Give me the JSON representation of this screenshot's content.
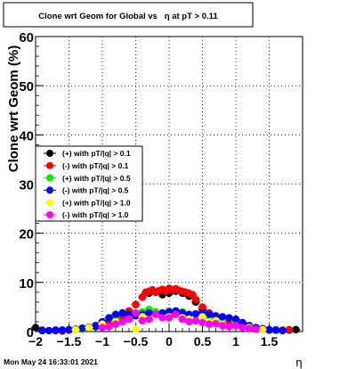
{
  "chart_data": {
    "type": "scatter",
    "title": "Clone wrt Geom for Global vs   η at pT > 0.11",
    "xlabel": "η",
    "ylabel": "Clone wrt Geom (%)",
    "xlim": [
      -2,
      2
    ],
    "ylim": [
      0,
      60
    ],
    "x_ticks": [
      -2,
      -1.5,
      -1,
      -0.5,
      0,
      0.5,
      1,
      1.5
    ],
    "x_tick_labels": [
      "−2",
      "−1.5",
      "−1",
      "−0.5",
      "0",
      "0.5",
      "1",
      "1.5"
    ],
    "y_ticks": [
      0,
      10,
      20,
      30,
      40,
      50,
      60
    ],
    "y_tick_labels": [
      "0",
      "10",
      "20",
      "30",
      "40",
      "50",
      "60"
    ],
    "grid": true,
    "legend_position": "upper-left",
    "footer": "Mon May 24 16:33:01 2021",
    "series": [
      {
        "name": "(+) with pT/|q| > 0.1",
        "color": "#000000",
        "x": [
          -2.0,
          -1.9,
          -1.7,
          -1.6,
          -1.5,
          -1.4,
          -1.3,
          -1.2,
          -1.1,
          -1.0,
          -0.9,
          -0.8,
          -0.7,
          -0.6,
          -0.5,
          -0.4,
          -0.3,
          -0.2,
          -0.1,
          0.0,
          0.1,
          0.2,
          0.3,
          0.4,
          0.5,
          0.6,
          0.7,
          0.8,
          0.9,
          1.0,
          1.1,
          1.2,
          1.3,
          1.4,
          1.5,
          1.6,
          1.7,
          1.8,
          1.9
        ],
        "y": [
          0.8,
          0.2,
          0.2,
          0.1,
          0.3,
          0.4,
          0.5,
          0.8,
          1.0,
          1.5,
          2.0,
          2.5,
          3.0,
          4.0,
          5.5,
          7.0,
          7.8,
          8.0,
          7.5,
          7.8,
          8.2,
          7.8,
          7.2,
          6.0,
          4.5,
          3.5,
          2.5,
          2.0,
          1.5,
          1.2,
          1.0,
          0.7,
          0.5,
          0.4,
          0.3,
          0.3,
          0.2,
          0.3,
          0.4
        ]
      },
      {
        "name": "(-) with pT/|q| > 0.1",
        "color": "#ff0000",
        "x": [
          -1.9,
          -1.7,
          -1.6,
          -1.5,
          -1.4,
          -1.3,
          -1.2,
          -1.1,
          -1.0,
          -0.9,
          -0.8,
          -0.7,
          -0.6,
          -0.5,
          -0.4,
          -0.35,
          -0.3,
          -0.25,
          -0.2,
          -0.15,
          -0.1,
          -0.05,
          0.0,
          0.05,
          0.1,
          0.15,
          0.2,
          0.25,
          0.3,
          0.35,
          0.4,
          0.5,
          0.6,
          0.7,
          0.8,
          0.9,
          1.0,
          1.1,
          1.2,
          1.3,
          1.4,
          1.5,
          1.6,
          1.7,
          1.8
        ],
        "y": [
          0.3,
          0.2,
          0.2,
          0.3,
          0.4,
          0.6,
          0.8,
          1.2,
          1.6,
          2.0,
          2.6,
          3.2,
          4.2,
          5.5,
          7.0,
          8.0,
          8.2,
          8.5,
          8.0,
          8.3,
          8.6,
          8.2,
          8.8,
          8.5,
          8.7,
          8.4,
          8.2,
          8.0,
          7.8,
          7.5,
          6.5,
          5.0,
          3.8,
          2.8,
          2.2,
          1.6,
          1.3,
          1.0,
          0.8,
          0.6,
          0.5,
          0.4,
          0.3,
          0.3,
          0.4
        ]
      },
      {
        "name": "(+) with pT/|q| > 0.5",
        "color": "#00ee00",
        "x": [
          -1.6,
          -1.3,
          -1.0,
          -0.8,
          -0.6,
          -0.4,
          -0.3,
          -0.2,
          0.0,
          0.2,
          0.4,
          0.6,
          0.8,
          1.0,
          1.3,
          1.6
        ],
        "y": [
          0.3,
          0.5,
          1.5,
          2.5,
          3.5,
          4.0,
          4.5,
          4.0,
          4.2,
          4.0,
          3.5,
          3.0,
          2.5,
          1.8,
          0.8,
          0.4
        ]
      },
      {
        "name": "(-) with pT/|q| > 0.5",
        "color": "#0000ff",
        "x": [
          -1.9,
          -1.8,
          -1.7,
          -1.6,
          -1.5,
          -1.4,
          -1.3,
          -1.2,
          -1.1,
          -1.0,
          -0.9,
          -0.8,
          -0.7,
          -0.6,
          -0.5,
          -0.4,
          -0.3,
          -0.2,
          -0.1,
          0.0,
          0.1,
          0.2,
          0.3,
          0.4,
          0.5,
          0.6,
          0.7,
          0.8,
          0.9,
          1.0,
          1.1,
          1.2,
          1.3,
          1.4,
          1.5,
          1.6,
          1.7
        ],
        "y": [
          0.2,
          0.2,
          0.3,
          0.3,
          0.4,
          0.5,
          0.7,
          0.9,
          1.2,
          2.0,
          2.8,
          3.5,
          3.8,
          3.5,
          3.2,
          3.5,
          3.8,
          3.2,
          3.8,
          4.0,
          4.2,
          3.8,
          3.5,
          3.6,
          3.8,
          3.5,
          3.2,
          3.0,
          2.8,
          2.5,
          1.8,
          1.2,
          0.8,
          0.6,
          0.4,
          0.3,
          0.2
        ]
      },
      {
        "name": "(+) with pT/|q| > 1.0",
        "color": "#ffff00",
        "x": [
          -1.4,
          -1.2,
          -1.0,
          -0.8,
          -0.6,
          -0.5,
          -0.4,
          -0.3,
          -0.2,
          -0.1,
          0.0,
          0.1,
          0.2,
          0.3,
          0.4,
          0.5,
          0.6,
          0.7,
          0.8,
          1.0,
          1.2,
          1.4
        ],
        "y": [
          0.4,
          0.8,
          1.5,
          2.0,
          2.5,
          0.5,
          3.0,
          2.5,
          3.2,
          2.8,
          3.0,
          3.4,
          2.8,
          2.5,
          2.0,
          3.0,
          2.0,
          2.2,
          1.5,
          1.2,
          0.8,
          0.4
        ]
      },
      {
        "name": "(-) with pT/|q| > 1.0",
        "color": "#ff00ff",
        "x": [
          -1.0,
          -0.9,
          -0.8,
          -0.7,
          -0.6,
          -0.5,
          -0.4,
          -0.3,
          -0.2,
          -0.1,
          0.0,
          0.1,
          0.2,
          0.3,
          0.4,
          0.5,
          0.6,
          0.7,
          0.8,
          0.9,
          1.0,
          1.1,
          1.2,
          1.3
        ],
        "y": [
          0.8,
          1.0,
          1.5,
          2.0,
          2.5,
          3.8,
          2.2,
          2.5,
          3.5,
          2.8,
          2.8,
          3.5,
          2.5,
          2.0,
          2.2,
          1.8,
          1.5,
          1.6,
          1.2,
          1.0,
          1.2,
          0.8,
          0.6,
          0.5
        ]
      }
    ]
  }
}
